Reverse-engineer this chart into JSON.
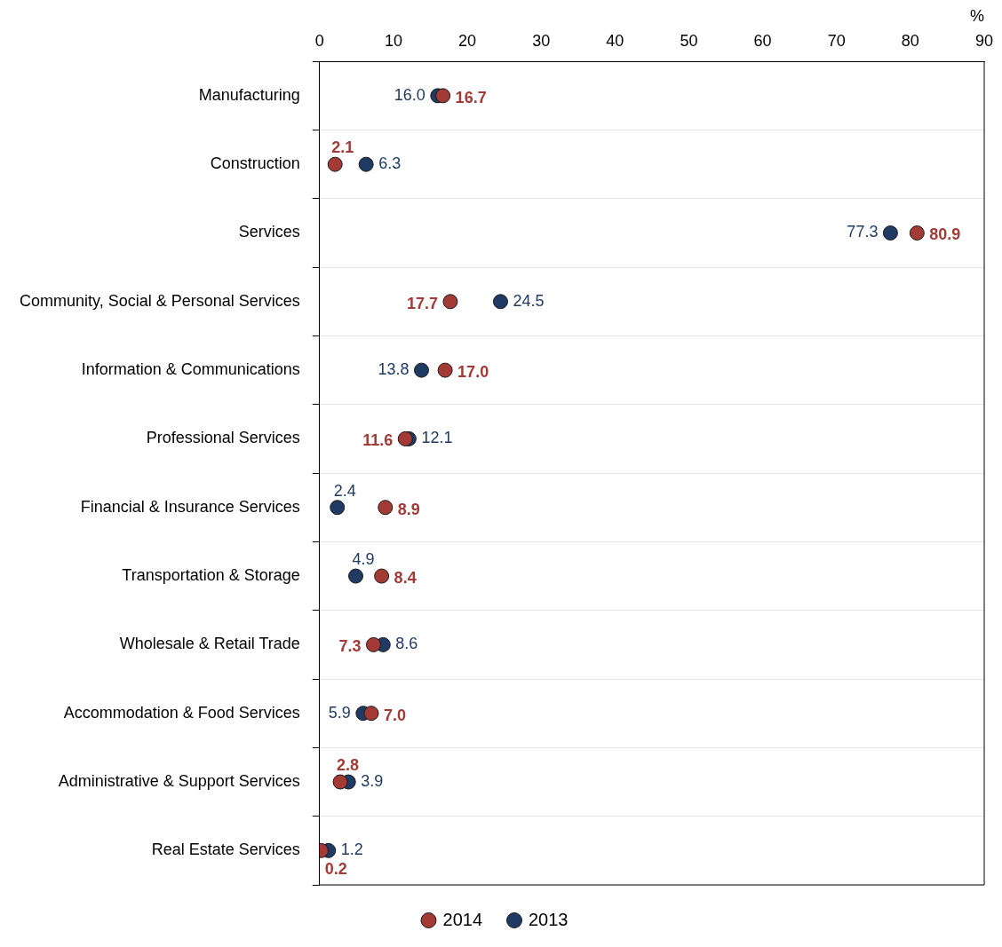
{
  "chart_data": {
    "type": "scatter",
    "orientation": "horizontal",
    "xlabel": "%",
    "categories": [
      "Manufacturing",
      "Construction",
      "Services",
      "Community, Social & Personal Services",
      "Information & Communications",
      "Professional Services",
      "Financial & Insurance Services",
      "Transportation & Storage",
      "Wholesale & Retail Trade",
      "Accommodation & Food Services",
      "Administrative & Support Services",
      "Real Estate Services"
    ],
    "series": [
      {
        "name": "2014",
        "color": "#a33a35",
        "values": [
          16.7,
          2.1,
          80.9,
          17.7,
          17,
          11.6,
          8.9,
          8.4,
          7.3,
          7,
          2.8,
          0.2
        ],
        "value_labels": [
          "16.7",
          "2.1",
          "80.9",
          "17.7",
          "17.0",
          "11.6",
          "8.9",
          "8.4",
          "7.3",
          "7.0",
          "2.8",
          "0.2"
        ]
      },
      {
        "name": "2013",
        "color": "#1f3b63",
        "values": [
          16,
          6.3,
          77.3,
          24.5,
          13.8,
          12.1,
          2.4,
          4.9,
          8.6,
          5.9,
          3.9,
          1.2
        ],
        "value_labels": [
          "16.0",
          "6.3",
          "77.3",
          "24.5",
          "13.8",
          "12.1",
          "2.4",
          "4.9",
          "8.6",
          "5.9",
          "3.9",
          "1.2"
        ]
      }
    ],
    "xlim": [
      0,
      90
    ],
    "xticks": [
      0,
      10,
      20,
      30,
      40,
      50,
      60,
      70,
      80,
      90
    ],
    "grid": "y",
    "legend": "bottom",
    "marker": "circle"
  }
}
